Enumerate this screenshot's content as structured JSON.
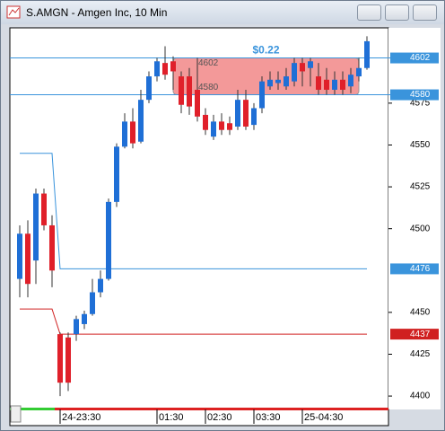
{
  "chart_data": {
    "type": "candlestick",
    "title": "S.AMGN - Amgen Inc, 10 Min",
    "categories": [
      null,
      null,
      null,
      null,
      null,
      "24-23:30",
      null,
      null,
      null,
      null,
      null,
      null,
      null,
      null,
      null,
      null,
      null,
      "01:30",
      null,
      null,
      null,
      null,
      null,
      "02:30",
      null,
      null,
      null,
      null,
      null,
      "03:30",
      null,
      null,
      null,
      null,
      null,
      "25-04:30",
      null,
      null,
      null,
      null,
      null,
      null,
      null,
      null
    ],
    "open": [
      4470,
      4497,
      4481,
      4521,
      4502,
      4437,
      4435,
      4437,
      4443,
      4449,
      4462,
      4470,
      4516,
      4549,
      4564,
      4552,
      4577,
      4591,
      4599,
      4600,
      4591,
      4591,
      4583,
      4568,
      4555,
      4564,
      4563,
      4561,
      4577,
      4562,
      4572,
      4585,
      4587,
      4585,
      4588,
      4599,
      4596,
      4591,
      4589,
      4583,
      4589,
      4585,
      4591,
      4596
    ],
    "high": [
      4502,
      4505,
      4524,
      4524,
      4508,
      4438,
      4438,
      4448,
      4451,
      4470,
      4475,
      4518,
      4551,
      4569,
      4572,
      4583,
      4594,
      4602,
      4609,
      4603,
      4594,
      4596,
      4602,
      4572,
      4568,
      4569,
      4567,
      4583,
      4583,
      4575,
      4591,
      4594,
      4594,
      4596,
      4602,
      4602,
      4602,
      4599,
      4596,
      4594,
      4594,
      4596,
      4602,
      4615
    ],
    "low": [
      4459,
      4459,
      4467,
      4499,
      4465,
      4400,
      4403,
      4433,
      4440,
      4448,
      4459,
      4469,
      4513,
      4548,
      4548,
      4551,
      4575,
      4588,
      4589,
      4583,
      4569,
      4568,
      4564,
      4556,
      4553,
      4556,
      4556,
      4559,
      4559,
      4559,
      4569,
      4583,
      4583,
      4583,
      4585,
      4585,
      4585,
      4580,
      4580,
      4580,
      4580,
      4581,
      4588,
      4595
    ],
    "close": [
      4497,
      4467,
      4521,
      4502,
      4475,
      4408,
      4408,
      4446,
      4449,
      4462,
      4470,
      4516,
      4549,
      4564,
      4551,
      4577,
      4591,
      4600,
      4592,
      4594,
      4574,
      4573,
      4567,
      4559,
      4564,
      4559,
      4559,
      4577,
      4561,
      4572,
      4588,
      4589,
      4589,
      4591,
      4599,
      4594,
      4600,
      4583,
      4583,
      4589,
      4583,
      4592,
      4596,
      4612
    ],
    "up_color": "#1f6fd6",
    "down_color": "#e0202a",
    "ylim": [
      4392,
      4620
    ],
    "yticks": [
      4400,
      4425,
      4450,
      4500,
      4525,
      4550,
      4575
    ],
    "price_lines": [
      {
        "value": 4602,
        "color": "#3a94dc"
      },
      {
        "value": 4580,
        "color": "#3a94dc"
      }
    ],
    "step_lines": [
      {
        "x": [
          0,
          4,
          5,
          43
        ],
        "values": [
          4545,
          4545,
          4476,
          4476
        ],
        "color": "#3a94dc"
      },
      {
        "x": [
          0,
          4,
          5,
          43
        ],
        "values": [
          4452,
          4452,
          4437,
          4437
        ],
        "color": "#d02020"
      }
    ],
    "range_box": {
      "label": "$0.22",
      "top": 4602,
      "bottom": 4580,
      "x": [
        19,
        42
      ],
      "color": "#f08080"
    }
  }
}
